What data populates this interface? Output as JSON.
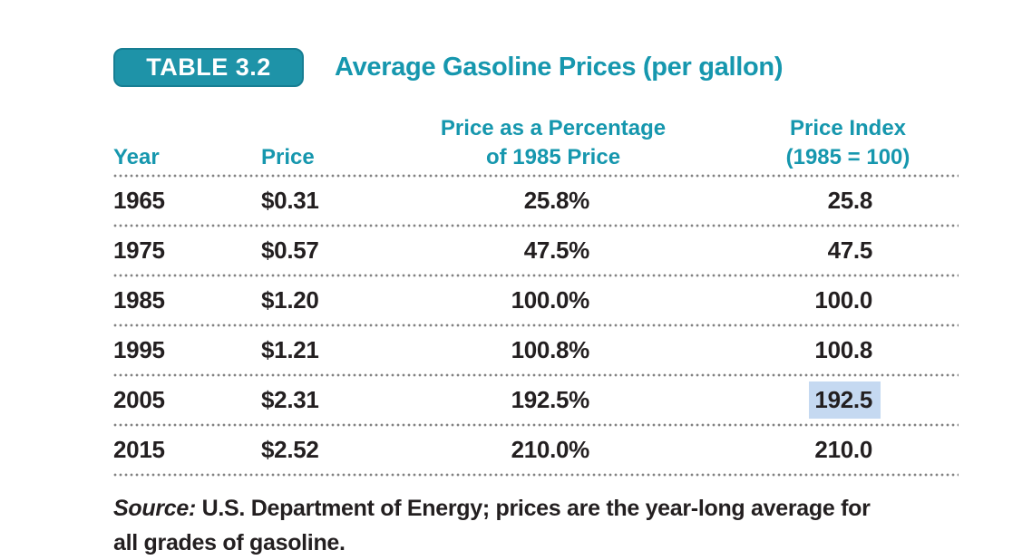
{
  "table": {
    "badge": "TABLE 3.2",
    "title": "Average Gasoline Prices (per gallon)",
    "headers": {
      "year": "Year",
      "price": "Price",
      "pct_line1": "Price as a Percentage",
      "pct_line2": "of 1985 Price",
      "idx_line1": "Price Index",
      "idx_line2": "(1985 = 100)"
    },
    "rows": [
      {
        "year": "1965",
        "price": "$0.31",
        "pct": "25.8%",
        "index": "25.8",
        "highlight": false
      },
      {
        "year": "1975",
        "price": "$0.57",
        "pct": "47.5%",
        "index": "47.5",
        "highlight": false
      },
      {
        "year": "1985",
        "price": "$1.20",
        "pct": "100.0%",
        "index": "100.0",
        "highlight": false
      },
      {
        "year": "1995",
        "price": "$1.21",
        "pct": "100.8%",
        "index": "100.8",
        "highlight": false
      },
      {
        "year": "2005",
        "price": "$2.31",
        "pct": "192.5%",
        "index": "192.5",
        "highlight": true
      },
      {
        "year": "2015",
        "price": "$2.52",
        "pct": "210.0%",
        "index": "210.0",
        "highlight": false
      }
    ],
    "source": {
      "label": "Source:",
      "line1": "U.S. Department of Energy; prices are the year-long average for",
      "line2": "all grades of gasoline."
    }
  },
  "colors": {
    "teal_text": "#1697ae",
    "badge_bg": "#1e93a8",
    "highlight_bg": "#c5d9f1",
    "body_text": "#231f20",
    "dot_gray": "#828282"
  }
}
